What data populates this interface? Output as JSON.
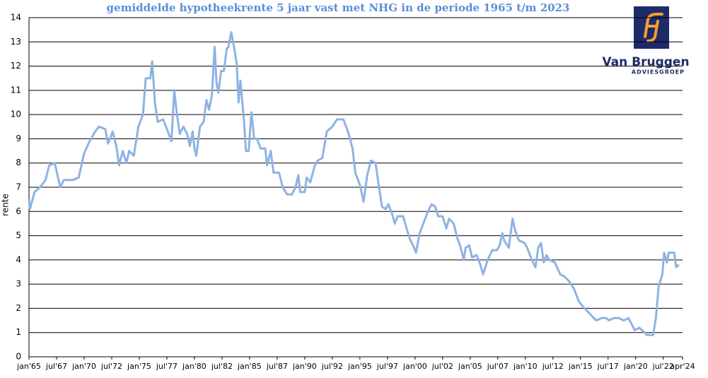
{
  "logo": {
    "name": "Van Bruggen",
    "tagline": "ADVIESGROEP"
  },
  "chart_data": {
    "type": "line",
    "title": "gemiddelde hypotheekrente 5 jaar vast met NHG in de periode 1965 t/m 2023",
    "y_label": "rente",
    "color": "#8db3e2",
    "grid": true,
    "ylim": [
      0,
      14
    ],
    "yticks": [
      0,
      1,
      2,
      3,
      4,
      5,
      6,
      7,
      8,
      9,
      10,
      11,
      12,
      13,
      14
    ],
    "xlim": [
      "1965-01",
      "2024-04"
    ],
    "xticks": [
      {
        "value": "1965-01",
        "label": "jan'65"
      },
      {
        "value": "1967-07",
        "label": "jul'67"
      },
      {
        "value": "1970-01",
        "label": "jan'70"
      },
      {
        "value": "1972-07",
        "label": "jul'72"
      },
      {
        "value": "1975-01",
        "label": "jan'75"
      },
      {
        "value": "1977-07",
        "label": "jul'77"
      },
      {
        "value": "1980-01",
        "label": "jan'80"
      },
      {
        "value": "1982-07",
        "label": "jul'82"
      },
      {
        "value": "1985-01",
        "label": "jan'85"
      },
      {
        "value": "1987-07",
        "label": "jul'87"
      },
      {
        "value": "1990-01",
        "label": "jan'90"
      },
      {
        "value": "1992-07",
        "label": "jul'92"
      },
      {
        "value": "1995-01",
        "label": "jan'95"
      },
      {
        "value": "1997-07",
        "label": "jul'97"
      },
      {
        "value": "2000-01",
        "label": "jan'00"
      },
      {
        "value": "2002-07",
        "label": "jul'02"
      },
      {
        "value": "2005-01",
        "label": "jan'05"
      },
      {
        "value": "2007-07",
        "label": "jul'07"
      },
      {
        "value": "2010-01",
        "label": "jan'10"
      },
      {
        "value": "2012-07",
        "label": "jul'12"
      },
      {
        "value": "2015-01",
        "label": "jan'15"
      },
      {
        "value": "2017-07",
        "label": "jul'17"
      },
      {
        "value": "2020-01",
        "label": "jan'20"
      },
      {
        "value": "2022-07",
        "label": "jul'22"
      },
      {
        "value": "2024-04",
        "label": "apr'24"
      }
    ],
    "x": [
      "1965-01",
      "1965-02",
      "1965-07",
      "1966-01",
      "1966-07",
      "1966-11",
      "1967-05",
      "1967-11",
      "1968-03",
      "1969-01",
      "1969-07",
      "1970-01",
      "1970-07",
      "1971-01",
      "1971-05",
      "1971-12",
      "1972-03",
      "1972-08",
      "1972-12",
      "1973-03",
      "1973-07",
      "1973-11",
      "1974-02",
      "1974-07",
      "1974-12",
      "1975-05",
      "1975-08",
      "1976-01",
      "1976-03",
      "1976-06",
      "1976-09",
      "1977-03",
      "1977-08",
      "1977-12",
      "1978-03",
      "1978-06",
      "1978-09",
      "1979-01",
      "1979-05",
      "1979-08",
      "1979-11",
      "1980-01",
      "1980-03",
      "1980-07",
      "1980-11",
      "1981-02",
      "1981-05",
      "1981-08",
      "1981-11",
      "1982-01",
      "1982-03",
      "1982-06",
      "1982-09",
      "1982-12",
      "1983-02",
      "1983-05",
      "1983-08",
      "1983-11",
      "1984-01",
      "1984-03",
      "1984-07",
      "1984-09",
      "1984-12",
      "1985-03",
      "1985-06",
      "1985-09",
      "1986-01",
      "1986-06",
      "1986-08",
      "1986-12",
      "1987-03",
      "1987-09",
      "1988-01",
      "1988-06",
      "1988-11",
      "1989-03",
      "1989-06",
      "1989-08",
      "1990-01",
      "1990-03",
      "1990-07",
      "1990-12",
      "1991-03",
      "1991-08",
      "1992-01",
      "1992-07",
      "1992-12",
      "1993-07",
      "1993-12",
      "1994-05",
      "1994-08",
      "1995-01",
      "1995-05",
      "1995-09",
      "1996-01",
      "1996-06",
      "1996-09",
      "1997-01",
      "1997-05",
      "1997-08",
      "1997-12",
      "1998-03",
      "1998-06",
      "1998-12",
      "1999-03",
      "1999-07",
      "1999-12",
      "2000-02",
      "2000-06",
      "2000-11",
      "2001-03",
      "2001-07",
      "2001-11",
      "2002-02",
      "2002-07",
      "2002-11",
      "2003-02",
      "2003-07",
      "2003-11",
      "2004-02",
      "2004-06",
      "2004-08",
      "2004-12",
      "2005-03",
      "2005-08",
      "2005-12",
      "2006-03",
      "2006-08",
      "2007-01",
      "2007-06",
      "2007-09",
      "2007-12",
      "2008-02",
      "2008-07",
      "2008-11",
      "2009-02",
      "2009-06",
      "2009-12",
      "2010-03",
      "2010-08",
      "2010-12",
      "2011-03",
      "2011-06",
      "2011-09",
      "2011-12",
      "2012-03",
      "2012-09",
      "2013-03",
      "2013-08",
      "2014-01",
      "2014-06",
      "2014-11",
      "2015-03",
      "2015-08",
      "2016-01",
      "2016-06",
      "2016-12",
      "2017-05",
      "2017-08",
      "2018-01",
      "2018-07",
      "2018-12",
      "2019-05",
      "2019-08",
      "2019-12",
      "2020-05",
      "2020-11",
      "2021-01",
      "2021-08",
      "2021-11",
      "2022-02",
      "2022-06",
      "2022-08",
      "2022-11",
      "2023-01",
      "2023-07",
      "2023-09",
      "2023-12"
    ],
    "values": [
      6.5,
      6.1,
      6.8,
      7.0,
      7.3,
      7.9,
      8.0,
      7.0,
      7.3,
      7.3,
      7.4,
      8.4,
      8.9,
      9.3,
      9.5,
      9.4,
      8.8,
      9.3,
      8.7,
      7.9,
      8.5,
      8.0,
      8.5,
      8.3,
      9.5,
      10.0,
      11.5,
      11.5,
      12.2,
      10.5,
      9.7,
      9.8,
      9.3,
      8.9,
      11.0,
      10.0,
      9.2,
      9.5,
      9.2,
      8.7,
      9.3,
      8.6,
      8.3,
      9.5,
      9.7,
      10.6,
      10.2,
      10.8,
      12.8,
      11.3,
      10.9,
      11.8,
      11.8,
      12.7,
      12.8,
      13.4,
      12.8,
      12.1,
      10.5,
      11.4,
      9.7,
      8.5,
      8.5,
      10.1,
      9.0,
      9.0,
      8.6,
      8.6,
      7.9,
      8.5,
      7.6,
      7.6,
      7.0,
      6.7,
      6.7,
      7.0,
      7.5,
      6.8,
      6.8,
      7.4,
      7.2,
      7.9,
      8.1,
      8.2,
      9.3,
      9.5,
      9.8,
      9.8,
      9.3,
      8.6,
      7.6,
      7.1,
      6.4,
      7.5,
      8.1,
      8.0,
      7.2,
      6.2,
      6.1,
      6.3,
      5.9,
      5.5,
      5.8,
      5.8,
      5.4,
      4.9,
      4.5,
      4.3,
      5.1,
      5.6,
      6.0,
      6.3,
      6.2,
      5.8,
      5.8,
      5.3,
      5.7,
      5.5,
      4.9,
      4.6,
      4.0,
      4.5,
      4.6,
      4.1,
      4.2,
      3.8,
      3.4,
      4.0,
      4.4,
      4.4,
      4.6,
      5.1,
      4.8,
      4.5,
      5.7,
      5.2,
      4.8,
      4.7,
      4.5,
      4.0,
      3.7,
      4.5,
      4.7,
      3.9,
      4.2,
      4.0,
      3.9,
      3.4,
      3.3,
      3.1,
      2.8,
      2.3,
      2.1,
      1.9,
      1.7,
      1.5,
      1.6,
      1.6,
      1.5,
      1.6,
      1.6,
      1.5,
      1.6,
      1.4,
      1.1,
      1.2,
      1.0,
      0.9,
      0.9,
      1.6,
      2.9,
      3.4,
      4.3,
      3.9,
      4.3,
      4.3,
      3.7,
      3.8
    ]
  }
}
